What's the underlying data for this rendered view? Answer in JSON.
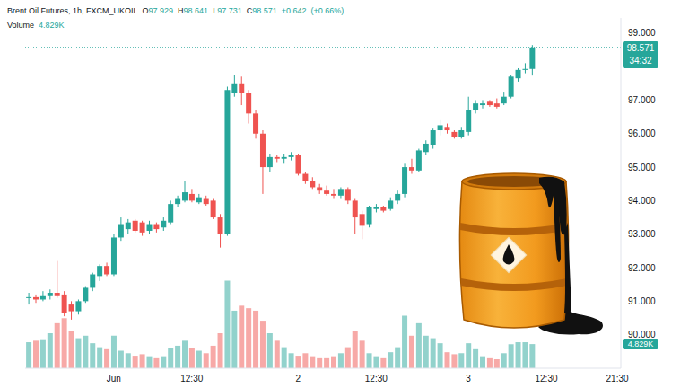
{
  "chart_data": {
    "type": "candlestick",
    "title": "Brent Oil Futures, 1h, FXCM_UKOIL",
    "subtitle": "O97.929 H98.641 L97.731 C98.571 +0.642 (+0.66%)",
    "volume_label": "Volume",
    "volume_value_label": "4.829K",
    "last_price_label": "98.571",
    "countdown": "34:32",
    "categories": [
      null,
      null,
      null,
      null,
      null,
      null,
      null,
      null,
      null,
      null,
      null,
      null,
      "Jun",
      null,
      null,
      null,
      null,
      null,
      null,
      null,
      null,
      null,
      null,
      "12:30",
      null,
      null,
      null,
      null,
      null,
      null,
      null,
      null,
      null,
      null,
      null,
      null,
      null,
      null,
      "2",
      null,
      null,
      null,
      null,
      null,
      null,
      null,
      null,
      null,
      null,
      "12:30",
      null,
      null,
      null,
      null,
      null,
      null,
      null,
      null,
      null,
      null,
      null,
      null,
      "3",
      null,
      null,
      null,
      null,
      null,
      null,
      null,
      null,
      null,
      null,
      "12:30",
      null,
      null,
      null,
      null,
      null,
      null,
      null,
      null,
      null,
      "21:30"
    ],
    "open": [
      91.1,
      91.12,
      91.05,
      91.15,
      91.25,
      91.2,
      90.9,
      90.7,
      91.0,
      91.4,
      91.75,
      92.05,
      91.8,
      92.9,
      93.15,
      93.4,
      93.35,
      93.1,
      93.3,
      93.2,
      93.35,
      93.9,
      94.0,
      94.2,
      93.95,
      94.05,
      94.0,
      93.5,
      93.0,
      97.2,
      97.5,
      97.2,
      96.6,
      96.0,
      95.0,
      95.3,
      95.25,
      95.3,
      95.35,
      94.8,
      94.6,
      94.4,
      94.3,
      94.2,
      94.15,
      94.35,
      94.0,
      93.6,
      93.3,
      93.75,
      93.8,
      93.75,
      94.0,
      94.2,
      95.0,
      94.9,
      95.45,
      95.65,
      96.1,
      96.2,
      96.05,
      95.9,
      96.05,
      96.7,
      96.85,
      96.95,
      96.9,
      96.9,
      97.1,
      97.65,
      97.9,
      97.929,
      null,
      null,
      null,
      null,
      null,
      null,
      null,
      null,
      null,
      null,
      null,
      null
    ],
    "high": [
      91.25,
      91.2,
      91.3,
      91.35,
      92.2,
      91.3,
      91.0,
      91.05,
      91.45,
      91.85,
      92.1,
      92.15,
      93.0,
      93.5,
      93.45,
      93.45,
      93.4,
      93.4,
      93.35,
      93.5,
      94.0,
      94.15,
      94.6,
      94.35,
      94.2,
      94.15,
      94.05,
      93.6,
      97.4,
      97.75,
      97.7,
      97.3,
      96.7,
      96.1,
      95.4,
      95.35,
      95.4,
      95.45,
      95.4,
      94.85,
      94.7,
      94.5,
      94.45,
      94.35,
      94.4,
      94.4,
      94.05,
      93.7,
      93.85,
      93.9,
      93.85,
      94.1,
      94.3,
      95.1,
      95.25,
      95.55,
      95.8,
      96.15,
      96.4,
      96.3,
      96.1,
      96.2,
      97.1,
      97.0,
      97.0,
      97.0,
      97.05,
      97.25,
      97.75,
      97.95,
      98.1,
      98.641,
      null,
      null,
      null,
      null,
      null,
      null,
      null,
      null,
      null,
      null,
      null,
      null
    ],
    "low": [
      90.9,
      90.95,
      91.0,
      91.05,
      91.1,
      90.55,
      90.45,
      90.6,
      90.95,
      91.3,
      91.6,
      91.75,
      91.75,
      92.8,
      93.0,
      93.05,
      92.95,
      93.0,
      93.05,
      93.1,
      93.3,
      93.8,
      93.95,
      93.95,
      93.9,
      93.85,
      93.45,
      92.6,
      92.95,
      97.1,
      96.85,
      96.3,
      95.85,
      94.2,
      94.85,
      95.15,
      95.1,
      95.2,
      94.75,
      94.5,
      94.35,
      94.2,
      94.15,
      94.05,
      94.05,
      93.9,
      93.0,
      92.85,
      93.2,
      93.65,
      93.65,
      93.7,
      93.9,
      94.1,
      94.8,
      94.85,
      95.35,
      95.55,
      95.95,
      96.0,
      95.85,
      95.85,
      95.95,
      96.6,
      96.75,
      96.8,
      96.75,
      96.85,
      97.05,
      97.55,
      97.8,
      97.731,
      null,
      null,
      null,
      null,
      null,
      null,
      null,
      null,
      null,
      null,
      null,
      null
    ],
    "close": [
      91.12,
      91.05,
      91.15,
      91.25,
      91.15,
      90.65,
      90.7,
      91.0,
      91.4,
      91.8,
      92.05,
      91.8,
      92.9,
      93.3,
      93.35,
      93.1,
      93.05,
      93.3,
      93.15,
      93.4,
      93.9,
      94.05,
      94.25,
      94.0,
      94.1,
      93.9,
      93.5,
      93.0,
      97.3,
      97.5,
      97.2,
      96.6,
      96.0,
      95.0,
      95.3,
      95.25,
      95.3,
      95.35,
      94.8,
      94.6,
      94.4,
      94.3,
      94.2,
      94.15,
      94.35,
      94.0,
      93.5,
      93.25,
      93.8,
      93.8,
      93.7,
      94.0,
      94.2,
      95.0,
      94.9,
      95.5,
      95.7,
      96.1,
      96.25,
      96.1,
      95.9,
      96.1,
      96.7,
      96.9,
      96.9,
      96.85,
      96.8,
      97.1,
      97.7,
      97.9,
      97.929,
      98.571,
      null,
      null,
      null,
      null,
      null,
      null,
      null,
      null,
      null,
      null,
      null,
      null
    ],
    "volume": [
      5.2,
      5.5,
      5.8,
      7.0,
      9.0,
      10.0,
      7.5,
      6.0,
      6.5,
      5.0,
      4.2,
      3.8,
      6.5,
      3.5,
      3.0,
      2.5,
      2.8,
      2.4,
      2.0,
      2.4,
      4.0,
      4.5,
      5.5,
      4.0,
      3.5,
      3.0,
      4.5,
      7.0,
      17.5,
      11.5,
      12.5,
      12.0,
      11.5,
      9.5,
      7.0,
      5.5,
      4.2,
      3.0,
      2.5,
      3.0,
      2.4,
      2.0,
      2.0,
      2.4,
      3.0,
      4.2,
      7.5,
      5.5,
      3.0,
      2.4,
      2.0,
      3.2,
      4.2,
      10.5,
      6.5,
      9.0,
      6.5,
      6.0,
      5.0,
      3.2,
      2.8,
      3.0,
      5.0,
      3.8,
      2.4,
      2.0,
      1.8,
      3.0,
      4.8,
      5.2,
      5.2,
      4.829,
      null,
      null,
      null,
      null,
      null,
      null,
      null,
      null,
      null,
      null,
      null,
      null
    ],
    "ylim": [
      89.0,
      99.45
    ],
    "yticks": [
      {
        "value": 90,
        "label": "90.000"
      },
      {
        "value": 91,
        "label": "91.000"
      },
      {
        "value": 92,
        "label": "92.000"
      },
      {
        "value": 93,
        "label": "93.000"
      },
      {
        "value": 94,
        "label": "94.000"
      },
      {
        "value": 95,
        "label": "95.000"
      },
      {
        "value": 96,
        "label": "96.000"
      },
      {
        "value": 97,
        "label": "97.000"
      },
      {
        "value": 99,
        "label": "99.000"
      }
    ],
    "y2lim": [
      0,
      70
    ],
    "grid": false
  }
}
